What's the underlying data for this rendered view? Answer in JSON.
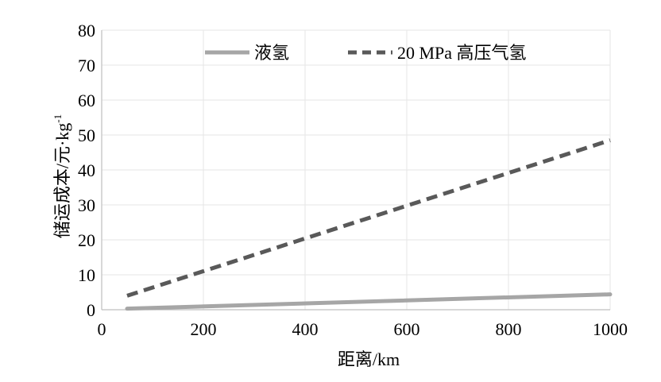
{
  "chart_data": {
    "type": "line",
    "title": "",
    "xlabel": "距离/km",
    "ylabel": "储运成本/元·kg",
    "ylabel_sup": "-1",
    "xlim": [
      0,
      1000
    ],
    "ylim": [
      0,
      80
    ],
    "xticks": [
      0,
      200,
      400,
      600,
      800,
      1000
    ],
    "yticks": [
      0,
      10,
      20,
      30,
      40,
      50,
      60,
      70,
      80
    ],
    "grid": true,
    "legend_position": "top",
    "series": [
      {
        "name": "液氢",
        "style": "solid",
        "color": "#a6a6a6",
        "x": [
          50,
          1000
        ],
        "y": [
          0.3,
          4.4
        ]
      },
      {
        "name": "20 MPa 高压气氢",
        "style": "dashed",
        "color": "#595959",
        "x": [
          50,
          1000
        ],
        "y": [
          4.0,
          48.5
        ]
      }
    ]
  }
}
